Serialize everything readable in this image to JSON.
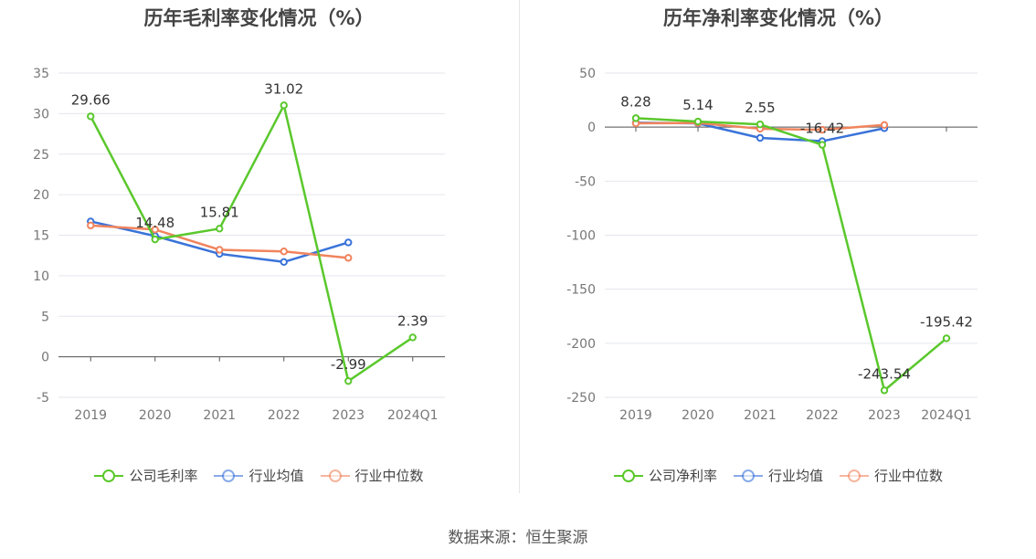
{
  "source": "数据来源：恒生聚源",
  "chart_data": [
    {
      "type": "line",
      "title": "历年毛利率变化情况（%）",
      "categories": [
        "2019",
        "2020",
        "2021",
        "2022",
        "2023",
        "2024Q1"
      ],
      "ylim": [
        -5,
        35
      ],
      "yticks": [
        -5,
        0,
        5,
        10,
        15,
        20,
        25,
        30,
        35
      ],
      "grid": true,
      "legend_position": "bottom",
      "series": [
        {
          "name": "公司毛利率",
          "color": "#5ac82c",
          "values": [
            29.66,
            14.48,
            15.81,
            31.02,
            -2.99,
            2.39
          ],
          "labels": [
            "29.66",
            "14.48",
            "15.81",
            "31.02",
            "-2.99",
            "2.39"
          ]
        },
        {
          "name": "行业均值",
          "color": "#3a73d9",
          "values": [
            16.7,
            14.9,
            12.7,
            11.7,
            14.1,
            null
          ]
        },
        {
          "name": "行业中位数",
          "color": "#f0845d",
          "values": [
            16.2,
            15.7,
            13.2,
            13.0,
            12.2,
            null
          ]
        }
      ]
    },
    {
      "type": "line",
      "title": "历年净利率变化情况（%）",
      "categories": [
        "2019",
        "2020",
        "2021",
        "2022",
        "2023",
        "2024Q1"
      ],
      "ylim": [
        -250,
        50
      ],
      "yticks": [
        -250,
        -200,
        -150,
        -100,
        -50,
        0,
        50
      ],
      "grid": true,
      "legend_position": "bottom",
      "series": [
        {
          "name": "公司净利率",
          "color": "#5ac82c",
          "values": [
            8.28,
            5.14,
            2.55,
            -16.42,
            -243.54,
            -195.42
          ],
          "labels": [
            "8.28",
            "5.14",
            "2.55",
            "-16.42",
            "-243.54",
            "-195.42"
          ]
        },
        {
          "name": "行业均值",
          "color": "#3a73d9",
          "values": [
            4.0,
            3.5,
            -10.0,
            -13.0,
            -1.0,
            null
          ]
        },
        {
          "name": "行业中位数",
          "color": "#f0845d",
          "values": [
            3.5,
            3.8,
            -1.5,
            -2.5,
            2.0,
            null
          ]
        }
      ]
    }
  ]
}
